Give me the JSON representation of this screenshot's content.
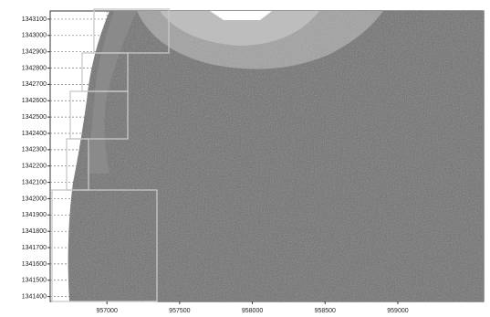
{
  "chart_data": {
    "type": "map",
    "xlim": [
      956610,
      959590
    ],
    "ylim": [
      1341370,
      1343150
    ],
    "xticks": [
      957000,
      957500,
      958000,
      958500,
      959000
    ],
    "yticks": [
      1343100,
      1343000,
      1342900,
      1342800,
      1342700,
      1342600,
      1342500,
      1342400,
      1342300,
      1342200,
      1342100,
      1342000,
      1341900,
      1341800,
      1341700,
      1341600,
      1341500,
      1341400
    ],
    "grid": true
  }
}
